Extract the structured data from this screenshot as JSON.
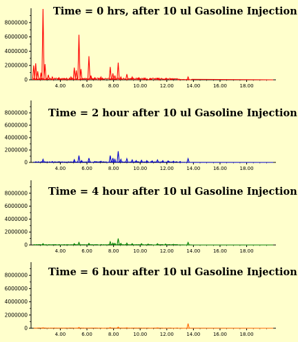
{
  "chart_data": [
    {
      "type": "line",
      "title": "Time = 0 hrs, after 10 ul Gasoline Injection",
      "color": "#ff0000",
      "ylim": [
        0,
        10000000
      ],
      "xlim": [
        1.8,
        20.2
      ],
      "yticks": [
        "8000000",
        "6000000",
        "4000000",
        "2000000",
        "0"
      ],
      "xticks": [
        "4.00",
        "6.00",
        "8.00",
        "10.00",
        "12.00",
        "14.00",
        "16.00",
        "18.00"
      ],
      "peaks": [
        {
          "x": 2.0,
          "y": 2000000
        },
        {
          "x": 2.15,
          "y": 2300000
        },
        {
          "x": 2.3,
          "y": 1200000
        },
        {
          "x": 2.55,
          "y": 1000000
        },
        {
          "x": 2.7,
          "y": 9900000
        },
        {
          "x": 2.85,
          "y": 2200000
        },
        {
          "x": 3.1,
          "y": 700000
        },
        {
          "x": 3.4,
          "y": 400000
        },
        {
          "x": 3.9,
          "y": 300000
        },
        {
          "x": 4.3,
          "y": 200000
        },
        {
          "x": 4.8,
          "y": 400000
        },
        {
          "x": 5.05,
          "y": 1700000
        },
        {
          "x": 5.2,
          "y": 1300000
        },
        {
          "x": 5.4,
          "y": 6300000
        },
        {
          "x": 5.55,
          "y": 1500000
        },
        {
          "x": 6.15,
          "y": 3300000
        },
        {
          "x": 6.3,
          "y": 600000
        },
        {
          "x": 6.6,
          "y": 300000
        },
        {
          "x": 7.05,
          "y": 400000
        },
        {
          "x": 7.75,
          "y": 1800000
        },
        {
          "x": 7.95,
          "y": 900000
        },
        {
          "x": 8.1,
          "y": 600000
        },
        {
          "x": 8.35,
          "y": 2400000
        },
        {
          "x": 8.55,
          "y": 400000
        },
        {
          "x": 9.0,
          "y": 800000
        },
        {
          "x": 9.4,
          "y": 400000
        },
        {
          "x": 9.9,
          "y": 300000
        },
        {
          "x": 10.3,
          "y": 250000
        },
        {
          "x": 10.8,
          "y": 200000
        },
        {
          "x": 11.3,
          "y": 200000
        },
        {
          "x": 11.9,
          "y": 150000
        },
        {
          "x": 12.3,
          "y": 150000
        },
        {
          "x": 12.9,
          "y": 100000
        },
        {
          "x": 13.6,
          "y": 400000
        }
      ]
    },
    {
      "type": "line",
      "title": "Time = 2 hour after 10 ul Gasoline Injection",
      "color": "#0000cc",
      "ylim": [
        0,
        10000000
      ],
      "xlim": [
        1.8,
        20.2
      ],
      "yticks": [
        "8000000",
        "6000000",
        "4000000",
        "2000000",
        "0"
      ],
      "xticks": [
        "4.00",
        "6.00",
        "8.00",
        "10.00",
        "12.00",
        "14.00",
        "16.00",
        "18.00"
      ],
      "peaks": [
        {
          "x": 2.7,
          "y": 500000
        },
        {
          "x": 3.4,
          "y": 150000
        },
        {
          "x": 5.05,
          "y": 450000
        },
        {
          "x": 5.4,
          "y": 1100000
        },
        {
          "x": 5.6,
          "y": 300000
        },
        {
          "x": 6.15,
          "y": 700000
        },
        {
          "x": 6.6,
          "y": 150000
        },
        {
          "x": 7.05,
          "y": 200000
        },
        {
          "x": 7.75,
          "y": 1100000
        },
        {
          "x": 7.95,
          "y": 700000
        },
        {
          "x": 8.1,
          "y": 500000
        },
        {
          "x": 8.35,
          "y": 1800000
        },
        {
          "x": 8.55,
          "y": 500000
        },
        {
          "x": 9.0,
          "y": 600000
        },
        {
          "x": 9.4,
          "y": 400000
        },
        {
          "x": 9.7,
          "y": 300000
        },
        {
          "x": 10.1,
          "y": 350000
        },
        {
          "x": 10.5,
          "y": 300000
        },
        {
          "x": 10.9,
          "y": 250000
        },
        {
          "x": 11.3,
          "y": 400000
        },
        {
          "x": 11.7,
          "y": 300000
        },
        {
          "x": 12.1,
          "y": 250000
        },
        {
          "x": 12.5,
          "y": 200000
        },
        {
          "x": 13.0,
          "y": 150000
        },
        {
          "x": 13.6,
          "y": 600000
        }
      ]
    },
    {
      "type": "line",
      "title": "Time = 4 hour after 10 ul Gasoline Injection",
      "color": "#008000",
      "ylim": [
        0,
        10000000
      ],
      "xlim": [
        1.8,
        20.2
      ],
      "yticks": [
        "8000000",
        "6000000",
        "4000000",
        "2000000",
        "0"
      ],
      "xticks": [
        "4.00",
        "6.00",
        "8.00",
        "10.00",
        "12.00",
        "14.00",
        "16.00",
        "18.00"
      ],
      "peaks": [
        {
          "x": 2.7,
          "y": 200000
        },
        {
          "x": 5.05,
          "y": 200000
        },
        {
          "x": 5.4,
          "y": 400000
        },
        {
          "x": 6.15,
          "y": 250000
        },
        {
          "x": 7.75,
          "y": 500000
        },
        {
          "x": 7.95,
          "y": 300000
        },
        {
          "x": 8.1,
          "y": 250000
        },
        {
          "x": 8.35,
          "y": 1000000
        },
        {
          "x": 8.55,
          "y": 250000
        },
        {
          "x": 9.0,
          "y": 300000
        },
        {
          "x": 9.4,
          "y": 200000
        },
        {
          "x": 10.1,
          "y": 200000
        },
        {
          "x": 10.6,
          "y": 150000
        },
        {
          "x": 11.3,
          "y": 200000
        },
        {
          "x": 11.9,
          "y": 150000
        },
        {
          "x": 12.5,
          "y": 100000
        },
        {
          "x": 13.6,
          "y": 400000
        }
      ]
    },
    {
      "type": "line",
      "title": "Time = 6 hour after 10 ul Gasoline Injection",
      "color": "#ff6600",
      "ylim": [
        0,
        10000000
      ],
      "xlim": [
        1.8,
        20.2
      ],
      "yticks": [
        "8000000",
        "6000000",
        "4000000",
        "2000000",
        "0"
      ],
      "xticks": [
        "4.00",
        "6.00",
        "8.00",
        "10.00",
        "12.00",
        "14.00",
        "16.00",
        "18.00"
      ],
      "peaks": [
        {
          "x": 2.7,
          "y": 80000
        },
        {
          "x": 5.4,
          "y": 120000
        },
        {
          "x": 7.75,
          "y": 100000
        },
        {
          "x": 8.35,
          "y": 180000
        },
        {
          "x": 9.0,
          "y": 80000
        },
        {
          "x": 11.3,
          "y": 60000
        },
        {
          "x": 13.6,
          "y": 700000
        }
      ]
    }
  ]
}
